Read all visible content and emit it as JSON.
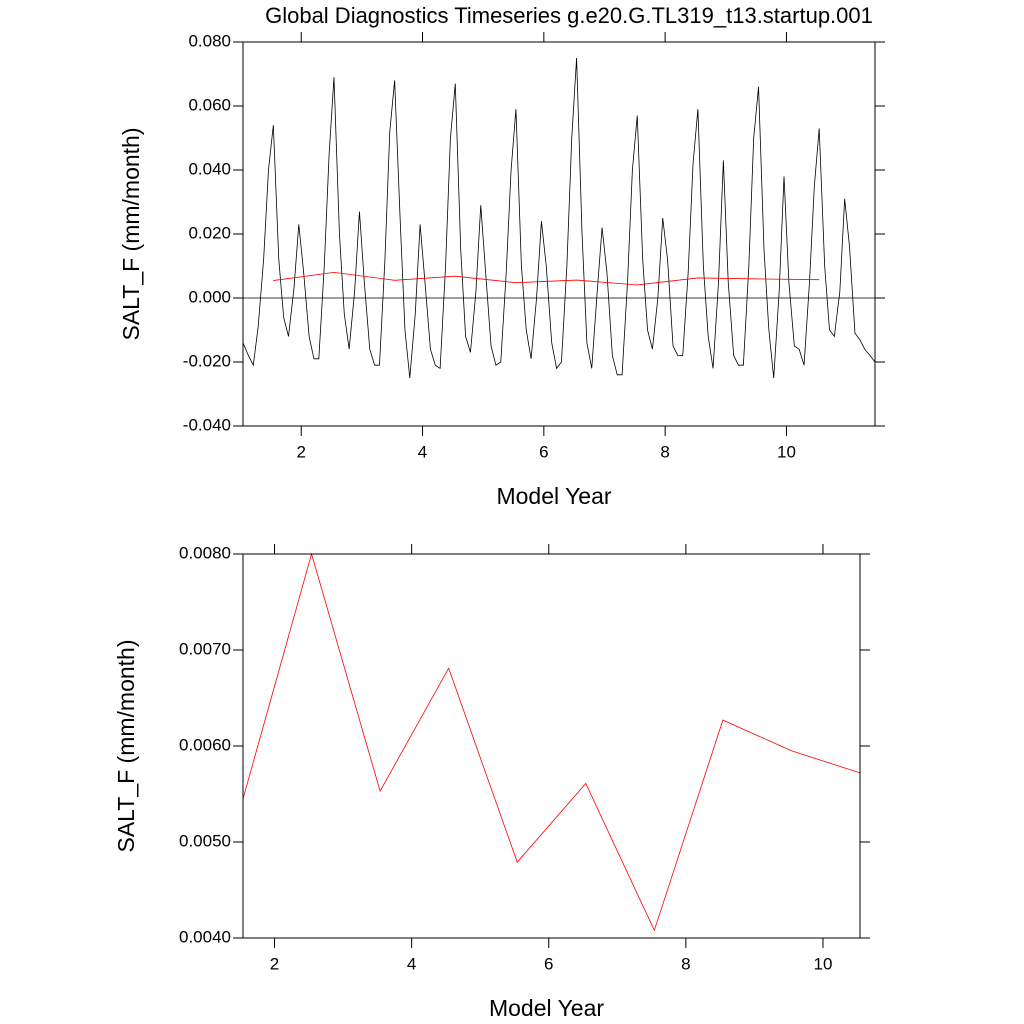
{
  "chart_data": [
    {
      "type": "line",
      "title": "Global Diagnostics Timeseries g.e20.G.TL319_t13.startup.001",
      "xlabel": "Model Year",
      "ylabel": "SALT_F (mm/month)",
      "xlim": [
        1.04,
        11.46
      ],
      "xticks": [
        2,
        4,
        6,
        8,
        10
      ],
      "ylim": [
        -0.04,
        0.08
      ],
      "yticks": [
        {
          "value": -0.04,
          "label": "-0.040"
        },
        {
          "value": -0.02,
          "label": "-0.020"
        },
        {
          "value": 0,
          "label": "0.000"
        },
        {
          "value": 0.02,
          "label": "0.020"
        },
        {
          "value": 0.04,
          "label": "0.040"
        },
        {
          "value": 0.06,
          "label": "0.060"
        },
        {
          "value": 0.08,
          "label": "0.080"
        }
      ],
      "zero_line": true,
      "series": [
        {
          "color": "#000000",
          "x": [
            1.04,
            1.13,
            1.21,
            1.29,
            1.38,
            1.46,
            1.54,
            1.63,
            1.71,
            1.79,
            1.88,
            1.96,
            2.04,
            2.13,
            2.21,
            2.29,
            2.38,
            2.46,
            2.54,
            2.63,
            2.71,
            2.79,
            2.88,
            2.96,
            3.04,
            3.13,
            3.21,
            3.29,
            3.38,
            3.46,
            3.54,
            3.63,
            3.71,
            3.79,
            3.88,
            3.96,
            4.04,
            4.13,
            4.21,
            4.29,
            4.38,
            4.46,
            4.54,
            4.63,
            4.71,
            4.79,
            4.88,
            4.96,
            5.04,
            5.13,
            5.21,
            5.29,
            5.38,
            5.46,
            5.54,
            5.63,
            5.71,
            5.79,
            5.88,
            5.96,
            6.04,
            6.13,
            6.21,
            6.29,
            6.38,
            6.46,
            6.54,
            6.63,
            6.71,
            6.79,
            6.88,
            6.96,
            7.04,
            7.13,
            7.21,
            7.29,
            7.38,
            7.46,
            7.54,
            7.63,
            7.71,
            7.79,
            7.88,
            7.96,
            8.04,
            8.13,
            8.21,
            8.29,
            8.38,
            8.46,
            8.54,
            8.63,
            8.71,
            8.79,
            8.88,
            8.96,
            9.04,
            9.13,
            9.21,
            9.29,
            9.38,
            9.46,
            9.54,
            9.63,
            9.71,
            9.79,
            9.88,
            9.96,
            10.04,
            10.13,
            10.21,
            10.29,
            10.38,
            10.46,
            10.54,
            10.63,
            10.71,
            10.79,
            10.88,
            10.96,
            11.04,
            11.13,
            11.21,
            11.29,
            11.38,
            11.46
          ],
          "values": [
            -0.014,
            -0.018,
            -0.021,
            -0.009,
            0.012,
            0.04,
            0.054,
            0.012,
            -0.006,
            -0.012,
            0.003,
            0.023,
            0.008,
            -0.012,
            -0.019,
            -0.019,
            0.01,
            0.045,
            0.069,
            0.02,
            -0.005,
            -0.016,
            0.002,
            0.027,
            0.005,
            -0.016,
            -0.021,
            -0.021,
            0.012,
            0.052,
            0.068,
            0.025,
            -0.01,
            -0.025,
            -0.005,
            0.023,
            0.005,
            -0.016,
            -0.021,
            -0.022,
            0.01,
            0.05,
            0.067,
            0.015,
            -0.012,
            -0.017,
            0.002,
            0.029,
            0.008,
            -0.015,
            -0.021,
            -0.02,
            0.008,
            0.04,
            0.059,
            0.01,
            -0.01,
            -0.019,
            0.0,
            0.024,
            0.01,
            -0.014,
            -0.022,
            -0.02,
            0.01,
            0.05,
            0.075,
            0.02,
            -0.014,
            -0.022,
            0.002,
            0.022,
            0.008,
            -0.018,
            -0.024,
            -0.024,
            0.005,
            0.04,
            0.057,
            0.012,
            -0.01,
            -0.016,
            0.0,
            0.025,
            0.012,
            -0.015,
            -0.018,
            -0.018,
            0.008,
            0.042,
            0.059,
            0.01,
            -0.012,
            -0.022,
            0.005,
            0.043,
            0.005,
            -0.018,
            -0.021,
            -0.021,
            0.01,
            0.05,
            0.066,
            0.015,
            -0.01,
            -0.025,
            0.002,
            0.038,
            0.005,
            -0.015,
            -0.016,
            -0.021,
            0.005,
            0.035,
            0.053,
            0.01,
            -0.01,
            -0.012,
            0.002,
            0.031,
            0.016,
            -0.011,
            -0.013,
            -0.016,
            -0.018,
            -0.02
          ]
        },
        {
          "color": "#ff0000",
          "x": [
            1.54,
            2.54,
            3.54,
            4.54,
            5.54,
            6.54,
            7.54,
            8.54,
            9.54,
            10.54
          ],
          "values": [
            0.00545,
            0.008,
            0.00553,
            0.00681,
            0.00479,
            0.00561,
            0.00408,
            0.00627,
            0.00595,
            0.00572
          ]
        }
      ]
    },
    {
      "type": "line",
      "xlabel": "Model Year",
      "ylabel": "SALT_F (mm/month)",
      "xlim": [
        1.54,
        10.54
      ],
      "xticks": [
        2,
        4,
        6,
        8,
        10
      ],
      "ylim": [
        0.004,
        0.008
      ],
      "yticks": [
        {
          "value": 0.004,
          "label": "0.0040"
        },
        {
          "value": 0.005,
          "label": "0.0050"
        },
        {
          "value": 0.006,
          "label": "0.0060"
        },
        {
          "value": 0.007,
          "label": "0.0070"
        },
        {
          "value": 0.008,
          "label": "0.0080"
        }
      ],
      "series": [
        {
          "color": "#ff0000",
          "x": [
            1.54,
            2.54,
            3.54,
            4.54,
            5.54,
            6.54,
            7.54,
            8.54,
            9.54,
            10.54
          ],
          "values": [
            0.00545,
            0.008,
            0.00553,
            0.00681,
            0.00479,
            0.00561,
            0.00408,
            0.00627,
            0.00595,
            0.00572
          ]
        }
      ]
    }
  ]
}
